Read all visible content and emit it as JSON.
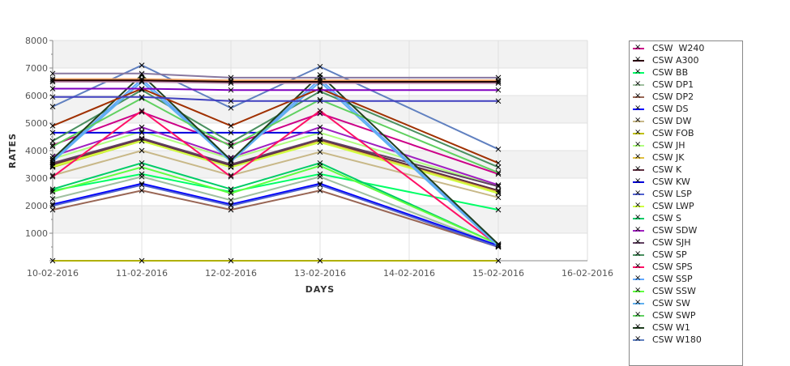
{
  "chart_data": {
    "type": "line",
    "title": "",
    "xlabel": "DAYS",
    "ylabel": "RATES",
    "x_ticks": [
      "10-02-2016",
      "11-02-2016",
      "12-02-2016",
      "13-02-2016",
      "14-02-2016",
      "15-02-2016",
      "16-02-2016"
    ],
    "x_points": [
      "10-02-2016",
      "11-02-2016",
      "12-02-2016",
      "13-02-2016",
      "15-02-2016"
    ],
    "x_index": [
      0,
      1,
      2,
      3,
      5
    ],
    "xlim": [
      0,
      6
    ],
    "ylim": [
      0,
      8000
    ],
    "y_ticks": [
      "1000",
      "2000",
      "3000",
      "4000",
      "5000",
      "6000",
      "7000",
      "8000"
    ],
    "y_tick_values": [
      1000,
      2000,
      3000,
      4000,
      5000,
      6000,
      7000,
      8000
    ],
    "grid": true,
    "legend_position": "right",
    "series": [
      {
        "name": "CSW  W240",
        "color": "#cc0088",
        "values": [
          4200,
          5400,
          4200,
          5350,
          3150
        ]
      },
      {
        "name": "CSW A300",
        "color": "#300010",
        "values": [
          3450,
          4400,
          3450,
          4380,
          2550
        ]
      },
      {
        "name": "CSW BB",
        "color": "#00ff66",
        "values": [
          2550,
          3150,
          2500,
          3150,
          1850
        ]
      },
      {
        "name": "CSW DP1",
        "color": "#a0c0a0",
        "values": [
          2250,
          3050,
          2200,
          3050,
          550
        ]
      },
      {
        "name": "CSW DP2",
        "color": "#996655",
        "values": [
          1850,
          2550,
          1850,
          2550,
          500
        ]
      },
      {
        "name": "CSW DS",
        "color": "#0000ff",
        "values": [
          2050,
          2800,
          2050,
          2800,
          550
        ]
      },
      {
        "name": "CSW DW",
        "color": "#c8b888",
        "values": [
          3100,
          4000,
          3100,
          3950,
          2300
        ]
      },
      {
        "name": "CSW FOB",
        "color": "#c0c000",
        "values": [
          3400,
          4350,
          3400,
          4350,
          2450
        ]
      },
      {
        "name": "CSW JH",
        "color": "#b0ff80",
        "values": [
          3700,
          4700,
          3700,
          4650,
          2700
        ]
      },
      {
        "name": "CSW JK",
        "color": "#e0c040",
        "values": [
          3450,
          4380,
          3400,
          4350,
          2500
        ]
      },
      {
        "name": "CSW K",
        "color": "#603040",
        "values": [
          3500,
          4420,
          3450,
          4400,
          2550
        ]
      },
      {
        "name": "CSW KW",
        "color": "#0000dd",
        "values": [
          4650,
          4650,
          4650,
          4650,
          null
        ]
      },
      {
        "name": "CSW LSP",
        "color": "#5060d0",
        "values": [
          2000,
          2750,
          2000,
          2750,
          500
        ]
      },
      {
        "name": "CSW LWP",
        "color": "#d0ff40",
        "values": [
          3420,
          4350,
          3400,
          4300,
          2450
        ]
      },
      {
        "name": "CSW S",
        "color": "#00cc66",
        "values": [
          2600,
          3550,
          2600,
          3550,
          600
        ]
      },
      {
        "name": "CSW SDW",
        "color": "#a020c0",
        "values": [
          3800,
          4850,
          3750,
          4850,
          2750
        ]
      },
      {
        "name": "CSW SJH",
        "color": "#604060",
        "values": [
          3550,
          4450,
          3500,
          4420,
          2700
        ]
      },
      {
        "name": "CSW SP",
        "color": "#4a9060",
        "values": [
          4350,
          6200,
          4300,
          6150,
          3400
        ]
      },
      {
        "name": "CSW SPS",
        "color": "#ff1066",
        "values": [
          3050,
          5450,
          3050,
          5450,
          550
        ]
      },
      {
        "name": "CSW SSP",
        "color": "#60a8ff",
        "values": [
          3650,
          6600,
          3650,
          6600,
          550
        ]
      },
      {
        "name": "CSW SSW",
        "color": "#60ff40",
        "values": [
          2500,
          3400,
          2450,
          3450,
          600
        ]
      },
      {
        "name": "CSW SW",
        "color": "#60b0f0",
        "values": [
          3600,
          6500,
          3600,
          6500,
          520
        ]
      },
      {
        "name": "CSW SWP",
        "color": "#60d060",
        "values": [
          4150,
          5900,
          4150,
          5850,
          3200
        ]
      },
      {
        "name": "CSW W1",
        "color": "#204020",
        "values": [
          3700,
          6750,
          3650,
          6750,
          600
        ]
      },
      {
        "name": "CSW W180",
        "color": "#6080c0",
        "values": [
          5600,
          7100,
          5550,
          7050,
          4050
        ]
      },
      {
        "color": "#a03000",
        "values": [
          4900,
          6250,
          4900,
          6250,
          3550
        ]
      },
      {
        "color": "#8878a0",
        "values": [
          6800,
          6800,
          6650,
          6650,
          6650
        ]
      },
      {
        "color": "#f0a060",
        "values": [
          6600,
          6600,
          6550,
          6550,
          6550
        ]
      },
      {
        "color": "#c090b0",
        "values": [
          6500,
          6500,
          6450,
          6450,
          6450
        ]
      },
      {
        "color": "#200000",
        "values": [
          6550,
          6550,
          6500,
          6500,
          6500
        ]
      },
      {
        "color": "#8000c0",
        "values": [
          6250,
          6250,
          6200,
          6200,
          6200
        ]
      },
      {
        "color": "#4040c0",
        "values": [
          5950,
          5950,
          5800,
          5800,
          5800
        ]
      },
      {
        "color": "#b0b000",
        "values": [
          0,
          0,
          0,
          0,
          0
        ]
      }
    ]
  }
}
